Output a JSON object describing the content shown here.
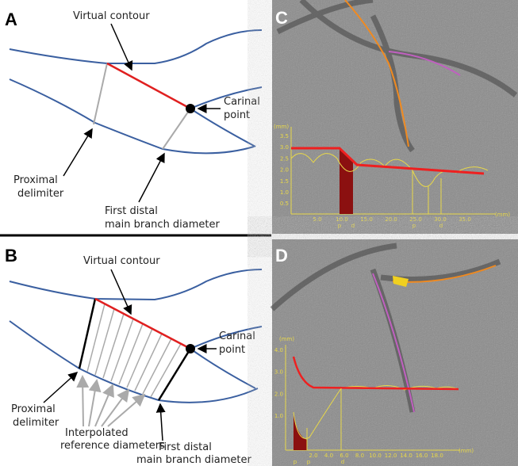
{
  "panels": [
    {
      "label": "A",
      "virtual_contour": "Virtual contour",
      "carinal_point": [
        "Carinal",
        "point"
      ],
      "proximal_delimiter": [
        "Proximal",
        "delimiter"
      ],
      "first_distal": [
        "First distal",
        "main branch diameter"
      ]
    },
    {
      "label": "B",
      "virtual_contour": "Virtual contour",
      "carinal_point": [
        "Carinal",
        "point"
      ],
      "proximal_delimiter": [
        "Proximal",
        "delimiter"
      ],
      "interpolated": [
        "Interpolated",
        "reference diameters"
      ],
      "first_distal": [
        "First distal",
        "main branch diameter"
      ]
    },
    {
      "label": "C",
      "y_unit": "(mm)",
      "x_unit": "(mm)",
      "yticks": [
        "3.5",
        "3.0",
        "2.5",
        "2.0",
        "1.5",
        "1.0",
        "0.5"
      ],
      "xticks": [
        "5.0",
        "10.0",
        "15.0",
        "20.0",
        "25.0",
        "30.0",
        "35.0"
      ],
      "markers": [
        "p",
        "d",
        "p",
        "d"
      ]
    },
    {
      "label": "D",
      "y_unit": "(mm)",
      "x_unit": "(mm)",
      "yticks": [
        "4.0",
        "3.0",
        "2.0",
        "1.0"
      ],
      "xticks": [
        "2.0",
        "4.0",
        "6.0",
        "8.0",
        "10.0",
        "12.0",
        "14.0",
        "16.0",
        "18.0"
      ],
      "markers": [
        "p",
        "p",
        "d"
      ]
    }
  ]
}
